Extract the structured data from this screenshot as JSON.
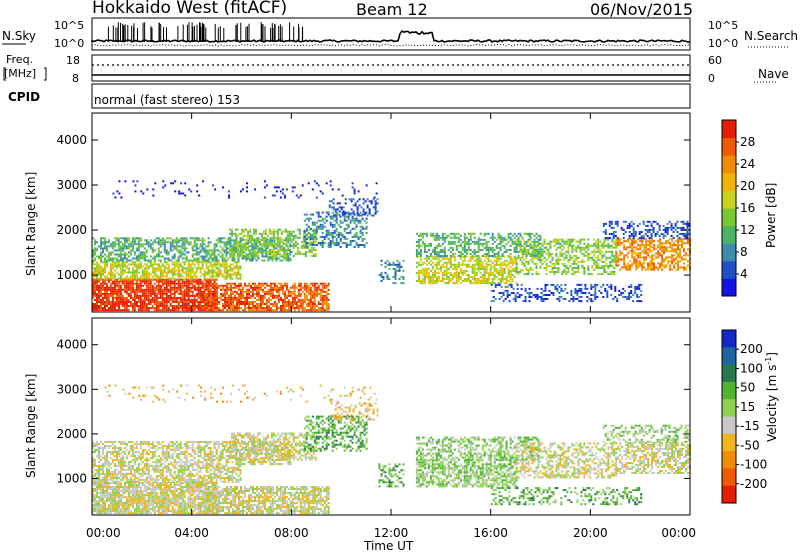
{
  "header": {
    "title": "Hokkaido West (fitACF)",
    "beam": "Beam 12",
    "date": "06/Nov/2015"
  },
  "top_panels": {
    "nsky_label": "N.Sky",
    "nsky_ticks": [
      "10^5",
      "10^0"
    ],
    "nsearch_label": "N.Search",
    "nsearch_ticks": [
      "10^5",
      "10^0"
    ],
    "freq_label_line1": "Freq.",
    "freq_label_line2": "[MHz]",
    "freq_ticks": [
      "18",
      "8"
    ],
    "nave_label": "Nave",
    "nave_ticks": [
      "60",
      "0"
    ],
    "cpid_label": "CPID",
    "cpid_text": "normal (fast stereo) 153"
  },
  "chart_data": [
    {
      "type": "heatmap",
      "name": "power",
      "xlabel": "",
      "ylabel": "Slant Range [km]",
      "x_ticks": [
        "00:00",
        "04:00",
        "08:00",
        "12:00",
        "16:00",
        "20:00",
        "00:00"
      ],
      "xlim_hours": [
        0,
        24
      ],
      "ylim": [
        180,
        4600
      ],
      "y_ticks": [
        1000,
        2000,
        3000,
        4000
      ],
      "colorbar": {
        "label": "Power [dB]",
        "ticks": [
          4,
          8,
          12,
          16,
          20,
          24,
          28
        ],
        "colors": [
          "#1414e6",
          "#1e50c8",
          "#3c8caa",
          "#4ab464",
          "#78c832",
          "#c8d21e",
          "#f0b400",
          "#f08c00",
          "#f05a00",
          "#e61e00"
        ]
      }
    },
    {
      "type": "heatmap",
      "name": "velocity",
      "xlabel": "Time UT",
      "ylabel": "Slant Range [km]",
      "x_ticks": [
        "00:00",
        "04:00",
        "08:00",
        "12:00",
        "16:00",
        "20:00",
        "00:00"
      ],
      "xlim_hours": [
        0,
        24
      ],
      "ylim": [
        180,
        4600
      ],
      "y_ticks": [
        1000,
        2000,
        3000,
        4000
      ],
      "colorbar": {
        "label": "Velocity [m s^-1]",
        "ticks": [
          "200",
          "100",
          "50",
          "15",
          "-15",
          "-50",
          "-100",
          "-200"
        ],
        "colors": [
          "#1428c8",
          "#1e64a0",
          "#287850",
          "#50b432",
          "#8cd250",
          "#c8c8c8",
          "#f0b41e",
          "#f08c00",
          "#f05a00",
          "#e61e00"
        ]
      }
    }
  ]
}
